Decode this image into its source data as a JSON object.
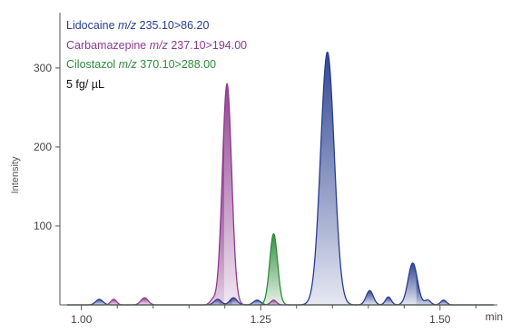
{
  "chart_data": {
    "type": "line",
    "title": "",
    "ylabel": "Intensity",
    "xunit": "min",
    "xlim": [
      0.97,
      1.58
    ],
    "ylim": [
      0,
      370
    ],
    "xticks": [
      {
        "value": 1.0,
        "label": "1.00"
      },
      {
        "value": 1.25,
        "label": "1.25"
      },
      {
        "value": 1.5,
        "label": "1.50"
      }
    ],
    "yticks": [
      {
        "value": 100,
        "label": "100"
      },
      {
        "value": 200,
        "label": "200"
      },
      {
        "value": 300,
        "label": "300"
      }
    ],
    "grid": false,
    "legend_placement": "top-left",
    "annotation": "5 fg/ µL",
    "series": [
      {
        "name": "Lidocaine",
        "mz_prefix": "m/z",
        "transition": "235.10>86.20",
        "color": "#283d8f",
        "peaks": [
          {
            "x": 1.025,
            "y": 7,
            "w": 0.005
          },
          {
            "x": 1.19,
            "y": 7,
            "w": 0.005
          },
          {
            "x": 1.212,
            "y": 9,
            "w": 0.005
          },
          {
            "x": 1.245,
            "y": 6,
            "w": 0.005
          },
          {
            "x": 1.343,
            "y": 320,
            "w": 0.0095
          },
          {
            "x": 1.402,
            "y": 18,
            "w": 0.005
          },
          {
            "x": 1.428,
            "y": 10,
            "w": 0.004
          },
          {
            "x": 1.462,
            "y": 53,
            "w": 0.0065
          },
          {
            "x": 1.483,
            "y": 6,
            "w": 0.004
          },
          {
            "x": 1.505,
            "y": 6,
            "w": 0.004
          }
        ]
      },
      {
        "name": "Carbamazepine",
        "mz_prefix": "m/z",
        "transition": "237.10>194.00",
        "color": "#8e3a8e",
        "peaks": [
          {
            "x": 1.045,
            "y": 7,
            "w": 0.004
          },
          {
            "x": 1.088,
            "y": 9,
            "w": 0.005
          },
          {
            "x": 1.183,
            "y": 6,
            "w": 0.004
          },
          {
            "x": 1.203,
            "y": 280,
            "w": 0.0065
          },
          {
            "x": 1.268,
            "y": 6,
            "w": 0.004
          }
        ]
      },
      {
        "name": "Cilostazol",
        "mz_prefix": "m/z",
        "transition": "370.10>288.00",
        "color": "#2e8c3a",
        "peaks": [
          {
            "x": 1.268,
            "y": 90,
            "w": 0.0055
          }
        ]
      }
    ]
  }
}
